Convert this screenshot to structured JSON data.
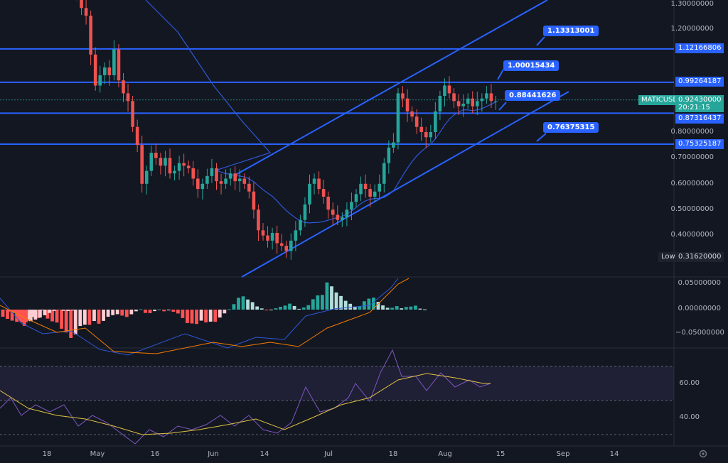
{
  "symbol": "MATICUSD",
  "countdown": "20:21:15",
  "low_label": "Low",
  "colors": {
    "background": "#131722",
    "up": "#26a69a",
    "down": "#ef5350",
    "line_blue": "#2962ff",
    "ma_blue": "#2e58d6",
    "macd_orange": "#f57c00",
    "rsi_purple": "#7e57c2",
    "rsi_yellow": "#e0c341",
    "hist_up_strong": "#26a69a",
    "hist_up_weak": "#b2dfdb",
    "hist_down_strong": "#ff5252",
    "hist_down_weak": "#ffcdd2"
  },
  "price_axis": [
    "1.30000000",
    "1.20000000",
    "0.80000000",
    "0.70000000",
    "0.60000000",
    "0.50000000",
    "0.40000000"
  ],
  "price_tags": {
    "h1": "1.12166806",
    "h2": "0.99264187",
    "current": "0.92430000",
    "h3": "0.87316437",
    "h4": "0.75325187",
    "low": "0.31620000"
  },
  "callouts": {
    "c1": "1.13313001",
    "c2": "1.00015434",
    "c3": "0.88441626",
    "c4": "0.76375315"
  },
  "macd_axis": [
    "0.05000000",
    "0.00000000",
    "−0.05000000"
  ],
  "rsi_axis": [
    "60.00",
    "40.00"
  ],
  "date_axis": [
    "18",
    "May",
    "16",
    "Jun",
    "14",
    "Jul",
    "18",
    "Aug",
    "15",
    "Sep",
    "14"
  ],
  "chart_data": {
    "type": "candlestick",
    "horizontal_levels": [
      1.12166806,
      0.99264187,
      0.87316437,
      0.75325187
    ],
    "current_price": 0.9243,
    "low": 0.3162,
    "closes": [
      1.33,
      1.28,
      1.25,
      1.1,
      0.98,
      1.02,
      1.05,
      1.02,
      1.12,
      1.0,
      0.95,
      0.92,
      0.82,
      0.75,
      0.6,
      0.65,
      0.72,
      0.7,
      0.67,
      0.7,
      0.64,
      0.65,
      0.68,
      0.67,
      0.66,
      0.62,
      0.58,
      0.6,
      0.63,
      0.66,
      0.61,
      0.6,
      0.62,
      0.64,
      0.61,
      0.62,
      0.6,
      0.57,
      0.5,
      0.42,
      0.4,
      0.38,
      0.41,
      0.37,
      0.36,
      0.34,
      0.38,
      0.42,
      0.46,
      0.52,
      0.6,
      0.62,
      0.58,
      0.55,
      0.5,
      0.48,
      0.46,
      0.47,
      0.5,
      0.53,
      0.56,
      0.6,
      0.58,
      0.55,
      0.57,
      0.6,
      0.68,
      0.74,
      0.76,
      0.95,
      0.93,
      0.88,
      0.86,
      0.82,
      0.8,
      0.78,
      0.8,
      0.88,
      0.94,
      0.98,
      0.95,
      0.92,
      0.9,
      0.91,
      0.93,
      0.9,
      0.92,
      0.93,
      0.95,
      0.92,
      0.92
    ]
  }
}
